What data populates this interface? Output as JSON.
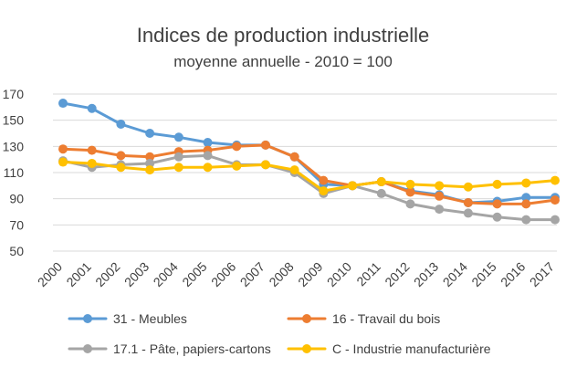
{
  "chart_data": {
    "type": "line",
    "title": "Indices de production industrielle",
    "subtitle": "moyenne annuelle - 2010 = 100",
    "xlabel": "",
    "ylabel": "",
    "categories": [
      "2000",
      "2001",
      "2002",
      "2003",
      "2004",
      "2005",
      "2006",
      "2007",
      "2008",
      "2009",
      "2010",
      "2011",
      "2012",
      "2013",
      "2014",
      "2015",
      "2016",
      "2017"
    ],
    "ylim": [
      50,
      170
    ],
    "yticks": [
      50,
      70,
      90,
      110,
      130,
      150,
      170
    ],
    "grid": true,
    "legend_position": "bottom",
    "series": [
      {
        "name": "31 - Meubles",
        "color": "#5B9BD5",
        "values": [
          163,
          159,
          147,
          140,
          137,
          133,
          131,
          131,
          122,
          101,
          100,
          103,
          96,
          93,
          87,
          88,
          91,
          91
        ]
      },
      {
        "name": "16 - Travail du bois",
        "color": "#ED7D31",
        "values": [
          128,
          127,
          123,
          122,
          126,
          127,
          130,
          131,
          122,
          104,
          100,
          103,
          95,
          92,
          87,
          86,
          86,
          89
        ]
      },
      {
        "name": "17.1 - Pâte, papiers-cartons",
        "color": "#A5A5A5",
        "values": [
          119,
          114,
          116,
          117,
          122,
          123,
          116,
          116,
          110,
          94,
          100,
          94,
          86,
          82,
          79,
          76,
          74,
          74
        ]
      },
      {
        "name": "C - Industrie manufacturière",
        "color": "#FFC000",
        "values": [
          118,
          117,
          114,
          112,
          114,
          114,
          115,
          116,
          112,
          96,
          100,
          103,
          101,
          100,
          99,
          101,
          102,
          104
        ]
      }
    ]
  }
}
